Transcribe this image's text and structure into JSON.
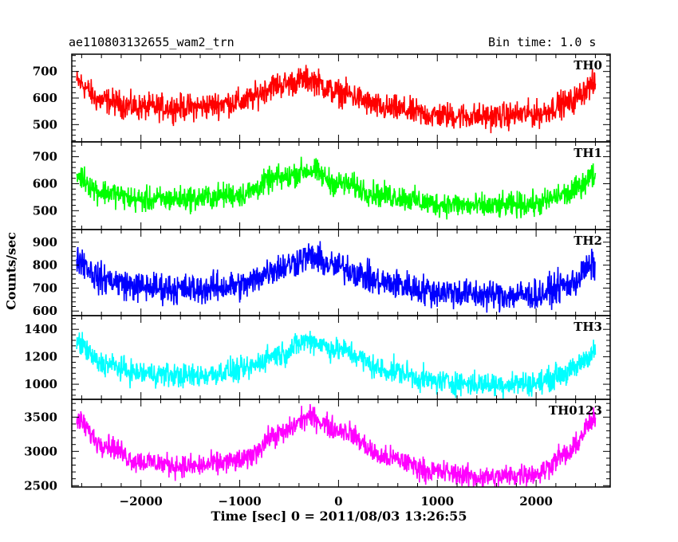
{
  "header": {
    "title": "ae110803132655_wam2_trn",
    "bin_time": "Bin time: 1.0 s"
  },
  "chart_data": {
    "type": "line",
    "xlabel": "Time [sec] 0 = 2011/08/03 13:26:55",
    "ylabel": "Counts/sec",
    "xlim": [
      -2700,
      2750
    ],
    "xticks": [
      -2000,
      -1000,
      0,
      1000,
      2000
    ],
    "xtick_labels": [
      "−2000",
      "−1000",
      "0",
      "1000",
      "2000"
    ],
    "x_range": [
      -2650,
      2600
    ],
    "panels": [
      {
        "name": "TH0",
        "color": "#ff0000",
        "ylim": [
          435,
          765
        ],
        "yticks": [
          500,
          600,
          700
        ],
        "ytick_labels": [
          "500",
          "600",
          "700"
        ],
        "x": [
          -2650,
          -2400,
          -2000,
          -1500,
          -1000,
          -600,
          -300,
          0,
          500,
          1000,
          1500,
          2000,
          2300,
          2600
        ],
        "y": [
          660,
          590,
          565,
          565,
          585,
          650,
          670,
          620,
          560,
          535,
          530,
          540,
          580,
          650
        ],
        "noise": 45
      },
      {
        "name": "TH1",
        "color": "#00ff00",
        "ylim": [
          430,
          755
        ],
        "yticks": [
          500,
          600,
          700
        ],
        "ytick_labels": [
          "500",
          "600",
          "700"
        ],
        "x": [
          -2650,
          -2400,
          -2000,
          -1500,
          -1000,
          -600,
          -300,
          0,
          500,
          1000,
          1500,
          2000,
          2300,
          2600
        ],
        "y": [
          630,
          570,
          540,
          545,
          560,
          620,
          650,
          600,
          555,
          525,
          515,
          525,
          560,
          630
        ],
        "noise": 42
      },
      {
        "name": "TH2",
        "color": "#0000ff",
        "ylim": [
          580,
          955
        ],
        "yticks": [
          600,
          700,
          800,
          900
        ],
        "ytick_labels": [
          "600",
          "700",
          "800",
          "900"
        ],
        "x": [
          -2650,
          -2400,
          -2000,
          -1500,
          -1000,
          -600,
          -300,
          0,
          500,
          1000,
          1500,
          2000,
          2300,
          2600
        ],
        "y": [
          830,
          740,
          705,
          695,
          710,
          790,
          835,
          790,
          720,
          685,
          670,
          670,
          710,
          800
        ],
        "noise": 60
      },
      {
        "name": "TH3",
        "color": "#00ffff",
        "ylim": [
          890,
          1500
        ],
        "yticks": [
          1000,
          1200,
          1400
        ],
        "ytick_labels": [
          "1000",
          "1200",
          "1400"
        ],
        "x": [
          -2650,
          -2400,
          -2000,
          -1500,
          -1000,
          -600,
          -300,
          0,
          500,
          1000,
          1500,
          2000,
          2300,
          2600
        ],
        "y": [
          1300,
          1150,
          1080,
          1060,
          1100,
          1220,
          1320,
          1250,
          1100,
          1020,
          1000,
          1010,
          1080,
          1230
        ],
        "noise": 80
      },
      {
        "name": "TH0123",
        "color": "#ff00ff",
        "ylim": [
          2480,
          3760
        ],
        "yticks": [
          2500,
          3000,
          3500
        ],
        "ytick_labels": [
          "2500",
          "3000",
          "3500"
        ],
        "x": [
          -2650,
          -2400,
          -2000,
          -1500,
          -1000,
          -600,
          -300,
          0,
          500,
          1000,
          1500,
          2000,
          2300,
          2600
        ],
        "y": [
          3450,
          3120,
          2850,
          2780,
          2860,
          3250,
          3500,
          3320,
          2900,
          2700,
          2620,
          2680,
          2950,
          3450
        ],
        "noise": 150
      }
    ]
  }
}
